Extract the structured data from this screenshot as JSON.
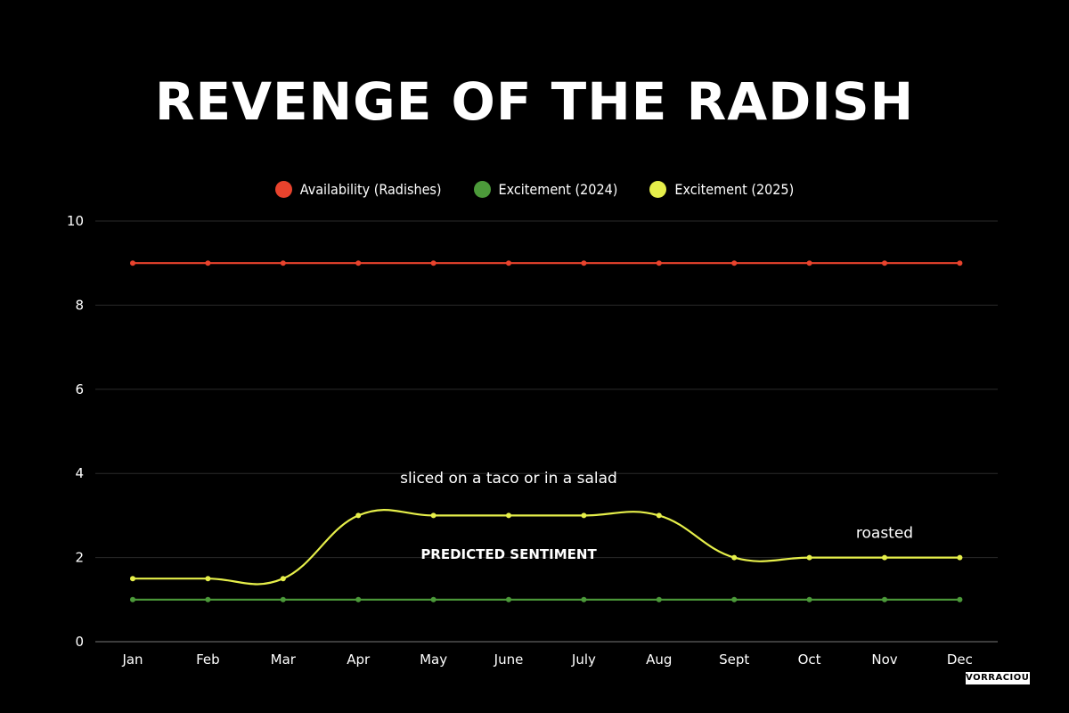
{
  "chart_data": {
    "type": "line",
    "title": "REVENGE OF THE RADISH",
    "categories": [
      "Jan",
      "Feb",
      "Mar",
      "Apr",
      "May",
      "June",
      "July",
      "Aug",
      "Sept",
      "Oct",
      "Nov",
      "Dec"
    ],
    "series": [
      {
        "name": "Availability (Radishes)",
        "color": "#e8432d",
        "smooth": false,
        "values": [
          9,
          9,
          9,
          9,
          9,
          9,
          9,
          9,
          9,
          9,
          9,
          9
        ]
      },
      {
        "name": "Excitement (2024)",
        "color": "#4c9a3a",
        "smooth": false,
        "values": [
          1,
          1,
          1,
          1,
          1,
          1,
          1,
          1,
          1,
          1,
          1,
          1
        ]
      },
      {
        "name": "Excitement (2025)",
        "color": "#e6ef4a",
        "smooth": true,
        "values": [
          1.5,
          1.5,
          1.5,
          3,
          3,
          3,
          3,
          3,
          2,
          2,
          2,
          2
        ]
      }
    ],
    "ylim": [
      0,
      10
    ],
    "yticks": [
      0,
      2,
      4,
      6,
      8,
      10
    ],
    "grid": true,
    "legend_position": "top-center",
    "annotations": [
      {
        "text": "sliced on a taco or in a salad",
        "x": "June",
        "y": 3.9
      },
      {
        "text": "PREDICTED SENTIMENT",
        "x": "June",
        "y": 2.1,
        "bold": true
      },
      {
        "text": "roasted",
        "x": "Nov",
        "y": 2.6
      }
    ]
  },
  "watermark": "VORRACIOUS"
}
